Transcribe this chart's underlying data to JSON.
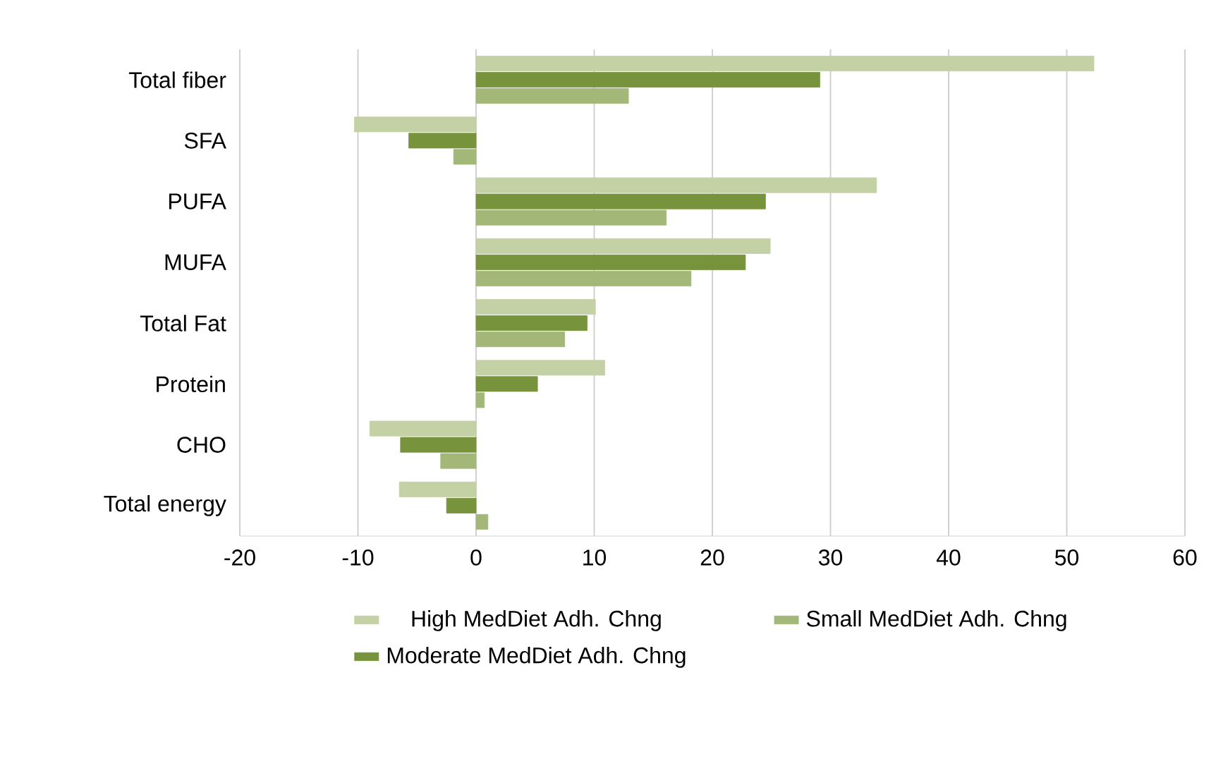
{
  "chart_data": {
    "type": "bar",
    "orientation": "horizontal",
    "categories": [
      "Total fiber",
      "SFA",
      "PUFA",
      "MUFA",
      "Total Fat",
      "Protein",
      "CHO",
      "Total energy"
    ],
    "series": [
      {
        "name": "High MedDiet Adh. Chng",
        "color": "#c3d1a5",
        "values": [
          52.3,
          -10.3,
          33.9,
          24.9,
          10.1,
          10.9,
          -9.0,
          -6.5
        ]
      },
      {
        "name": "Moderate MedDiet Adh. Chng",
        "color": "#77933c",
        "values": [
          29.1,
          -5.7,
          24.5,
          22.8,
          9.4,
          5.2,
          -6.4,
          -2.5
        ]
      },
      {
        "name": "Small MedDiet Adh. Chng",
        "color": "#a3b878",
        "values": [
          12.9,
          -1.9,
          16.1,
          18.2,
          7.5,
          0.7,
          -3.0,
          1.0
        ]
      }
    ],
    "xlim": [
      -20,
      60
    ],
    "xticks": [
      -20,
      -10,
      0,
      10,
      20,
      30,
      40,
      50,
      60
    ],
    "grid": "x",
    "legend": "bottom"
  }
}
